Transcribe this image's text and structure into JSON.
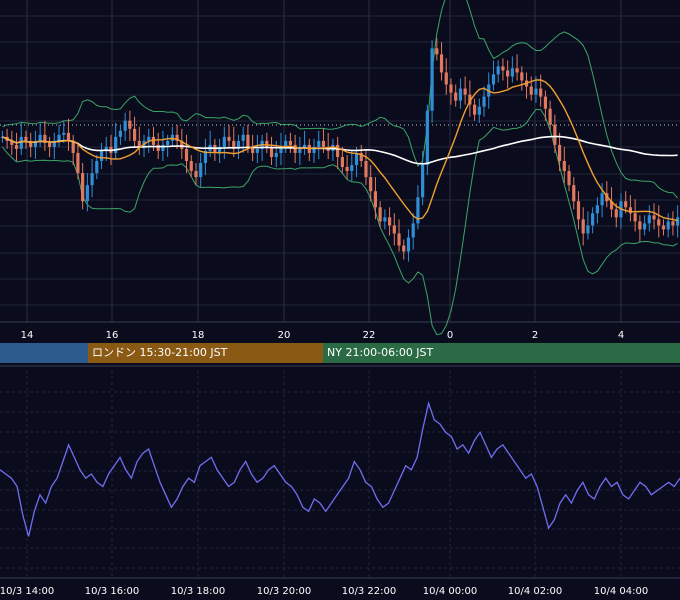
{
  "colors": {
    "background": "#0b0b1e",
    "up_candle": "#2f8fd6",
    "down_candle": "#e07a5f",
    "bollinger": "#3aa565",
    "ma_short": "#f0a030",
    "ma_long": "#ffffff",
    "oscillator": "#6f6ff0",
    "tokyo_band": "#2c5a8c",
    "london_band": "#8a5a14",
    "ny_band": "#2a6b45"
  },
  "sessions": [
    {
      "label": "",
      "key": "tokyo"
    },
    {
      "label": "ロンドン 15:30-21:00 JST",
      "key": "london"
    },
    {
      "label": "NY 21:00-06:00 JST",
      "key": "ny"
    }
  ],
  "top_axis_ticks": [
    "14",
    "16",
    "18",
    "20",
    "22",
    "0",
    "2",
    "4"
  ],
  "bottom_axis_ticks": [
    "10/3 14:00",
    "10/3 16:00",
    "10/3 18:00",
    "10/3 20:00",
    "10/3 22:00",
    "10/4 00:00",
    "10/4 02:00",
    "10/4 04:00"
  ],
  "chart_data": [
    {
      "type": "candlestick",
      "hours_per_candle": 0.25,
      "x_start": "10/3 13:15",
      "x_ticks": [
        "14",
        "16",
        "18",
        "20",
        "22",
        "0",
        "2",
        "4"
      ],
      "grid": true,
      "overlays": [
        "bollinger bands",
        "moving average (orange)",
        "moving average (white)",
        "reference level (dotted)"
      ],
      "close_series": [
        0.52,
        0.5,
        0.48,
        0.46,
        0.52,
        0.5,
        0.47,
        0.5,
        0.53,
        0.49,
        0.47,
        0.5,
        0.53,
        0.54,
        0.5,
        0.44,
        0.34,
        0.2,
        0.28,
        0.34,
        0.4,
        0.45,
        0.47,
        0.44,
        0.52,
        0.55,
        0.6,
        0.56,
        0.5,
        0.47,
        0.5,
        0.52,
        0.48,
        0.45,
        0.48,
        0.5,
        0.53,
        0.5,
        0.46,
        0.4,
        0.35,
        0.32,
        0.39,
        0.45,
        0.48,
        0.44,
        0.47,
        0.52,
        0.5,
        0.46,
        0.5,
        0.53,
        0.47,
        0.44,
        0.46,
        0.5,
        0.47,
        0.42,
        0.44,
        0.47,
        0.5,
        0.48,
        0.44,
        0.46,
        0.48,
        0.44,
        0.47,
        0.5,
        0.47,
        0.45,
        0.48,
        0.42,
        0.37,
        0.35,
        0.38,
        0.44,
        0.4,
        0.32,
        0.25,
        0.17,
        0.1,
        0.12,
        0.08,
        0.04,
        -0.02,
        -0.05,
        0.02,
        0.09,
        0.22,
        0.38,
        0.65,
        0.96,
        0.93,
        0.84,
        0.78,
        0.74,
        0.7,
        0.76,
        0.73,
        0.68,
        0.63,
        0.67,
        0.72,
        0.78,
        0.83,
        0.87,
        0.85,
        0.82,
        0.86,
        0.84,
        0.8,
        0.77,
        0.73,
        0.76,
        0.72,
        0.66,
        0.58,
        0.48,
        0.4,
        0.35,
        0.28,
        0.2,
        0.11,
        0.04,
        0.08,
        0.14,
        0.18,
        0.24,
        0.2,
        0.16,
        0.12,
        0.2,
        0.17,
        0.14,
        0.1,
        0.06,
        0.09,
        0.13,
        0.11,
        0.08,
        0.06,
        0.1,
        0.08,
        0.12
      ],
      "ylim": [
        -0.4,
        1.2
      ]
    },
    {
      "type": "line",
      "series": [
        {
          "values": [
            0.6,
            0.5,
            0.4,
            0.2,
            -0.5,
            -1,
            -0.4,
            0,
            -0.2,
            0.2,
            0.4,
            0.8,
            1.2,
            0.9,
            0.6,
            0.4,
            0.5,
            0.3,
            0.2,
            0.5,
            0.7,
            0.9,
            0.6,
            0.4,
            0.8,
            1,
            1.1,
            0.7,
            0.3,
            0,
            -0.3,
            -0.1,
            0.2,
            0.4,
            0.3,
            0.7,
            0.8,
            0.9,
            0.6,
            0.4,
            0.2,
            0.3,
            0.6,
            0.8,
            0.5,
            0.3,
            0.4,
            0.6,
            0.7,
            0.5,
            0.3,
            0.2,
            0,
            -0.3,
            -0.4,
            -0.1,
            -0.2,
            -0.4,
            -0.2,
            0,
            0.2,
            0.4,
            0.8,
            0.6,
            0.3,
            0.2,
            -0.1,
            -0.3,
            -0.2,
            0.1,
            0.4,
            0.7,
            0.6,
            0.9,
            1.6,
            2.2,
            1.8,
            1.7,
            1.5,
            1.4,
            1.1,
            1.2,
            1.0,
            1.3,
            1.5,
            1.2,
            0.9,
            1.1,
            1.2,
            1.0,
            0.8,
            0.6,
            0.4,
            0.5,
            0.2,
            -0.3,
            -0.8,
            -0.6,
            -0.2,
            0.0,
            -0.2,
            0.1,
            0.3,
            0.0,
            -0.1,
            0.2,
            0.4,
            0.2,
            0.3,
            0.0,
            -0.1,
            0.1,
            0.3,
            0.2,
            0.0,
            0.1,
            0.2,
            0.3,
            0.2,
            0.4
          ]
        }
      ],
      "x_ticks": [
        "10/3 14:00",
        "10/3 16:00",
        "10/3 18:00",
        "10/3 20:00",
        "10/3 22:00",
        "10/4 00:00",
        "10/4 02:00",
        "10/4 04:00"
      ],
      "grid": true,
      "ylim": [
        -2,
        3
      ]
    }
  ]
}
